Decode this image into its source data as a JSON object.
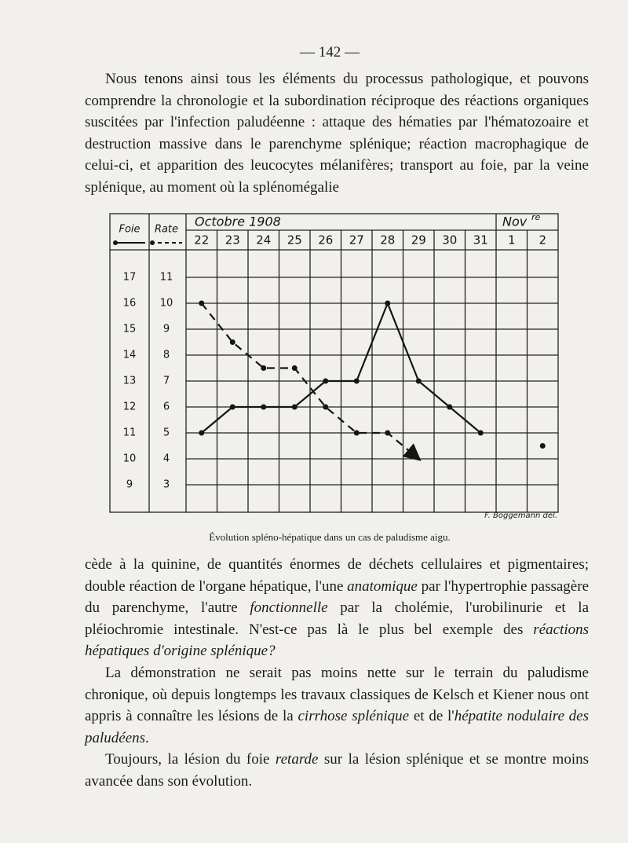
{
  "page_number": "— 142 —",
  "paragraphs": [
    [
      "Nous tenons ainsi tous les éléments du processus pathologique, et pouvons comprendre la chronologie et la subordination réciproque des réactions organiques suscitées par l'infection paludéenne : attaque des hématies par l'hématozoaire et destruction massive dans le parenchyme splénique; réaction macrophagique de celui-ci, et apparition des leucocytes mélanifères; transport au foie, par la veine splénique, au moment où la splénomégalie"
    ],
    [
      "cède à la quinine, de quantités énormes de déchets cellulaires et pigmentaires; double réaction de l'organe hépatique, l'une ",
      "anatomique",
      " par l'hypertrophie passagère du parenchyme, l'autre ",
      "fonctionnelle",
      " par la cholémie, l'urobilinurie et la pléiochromie intestinale. N'est-ce pas là le plus bel exemple des ",
      "réactions hépatiques d'origine splénique?"
    ],
    [
      "La démonstration ne serait pas moins nette sur le terrain du paludisme chronique, où depuis longtemps les travaux classiques de Kelsch et Kiener nous ont appris à connaître les lésions de la ",
      "cirrhose splénique",
      " et de l'",
      "hépatite nodulaire des paludéens",
      "."
    ],
    [
      "Toujours, la lésion du foie ",
      "retarde",
      " sur la lésion splénique et se montre moins avancée dans son évolution."
    ]
  ],
  "figure": {
    "chart_data": {
      "type": "line",
      "month_octobre": "Octobre 1908",
      "month_novembre": "Nov",
      "month_novembre_sup": "re",
      "categories": [
        "22",
        "23",
        "24",
        "25",
        "26",
        "27",
        "28",
        "29",
        "30",
        "31",
        "1",
        "2"
      ],
      "series": [
        {
          "name": "Foie",
          "color": "#151515",
          "dashed": false,
          "values": [
            11,
            12,
            12,
            12,
            13,
            13,
            16,
            13,
            12,
            11,
            null,
            10.5
          ]
        },
        {
          "name": "Rate",
          "color": "#151515",
          "dashed": true,
          "axis": "y2",
          "end_marker": "arrow",
          "values": [
            10,
            8.5,
            7.5,
            7.5,
            6,
            5,
            5,
            4,
            null,
            null,
            null,
            null
          ]
        }
      ],
      "ylim": [
        8,
        18
      ],
      "yticks": [
        17,
        16,
        15,
        14,
        13,
        12,
        11,
        10,
        9
      ],
      "y2lim": [
        2,
        12
      ],
      "y2ticks": [
        11,
        10,
        9,
        8,
        7,
        6,
        5,
        4,
        3
      ],
      "grid": true
    },
    "credit": "F. Boggemann del.",
    "caption": "Évolution spléno-hépatique dans un cas de paludisme aigu."
  }
}
